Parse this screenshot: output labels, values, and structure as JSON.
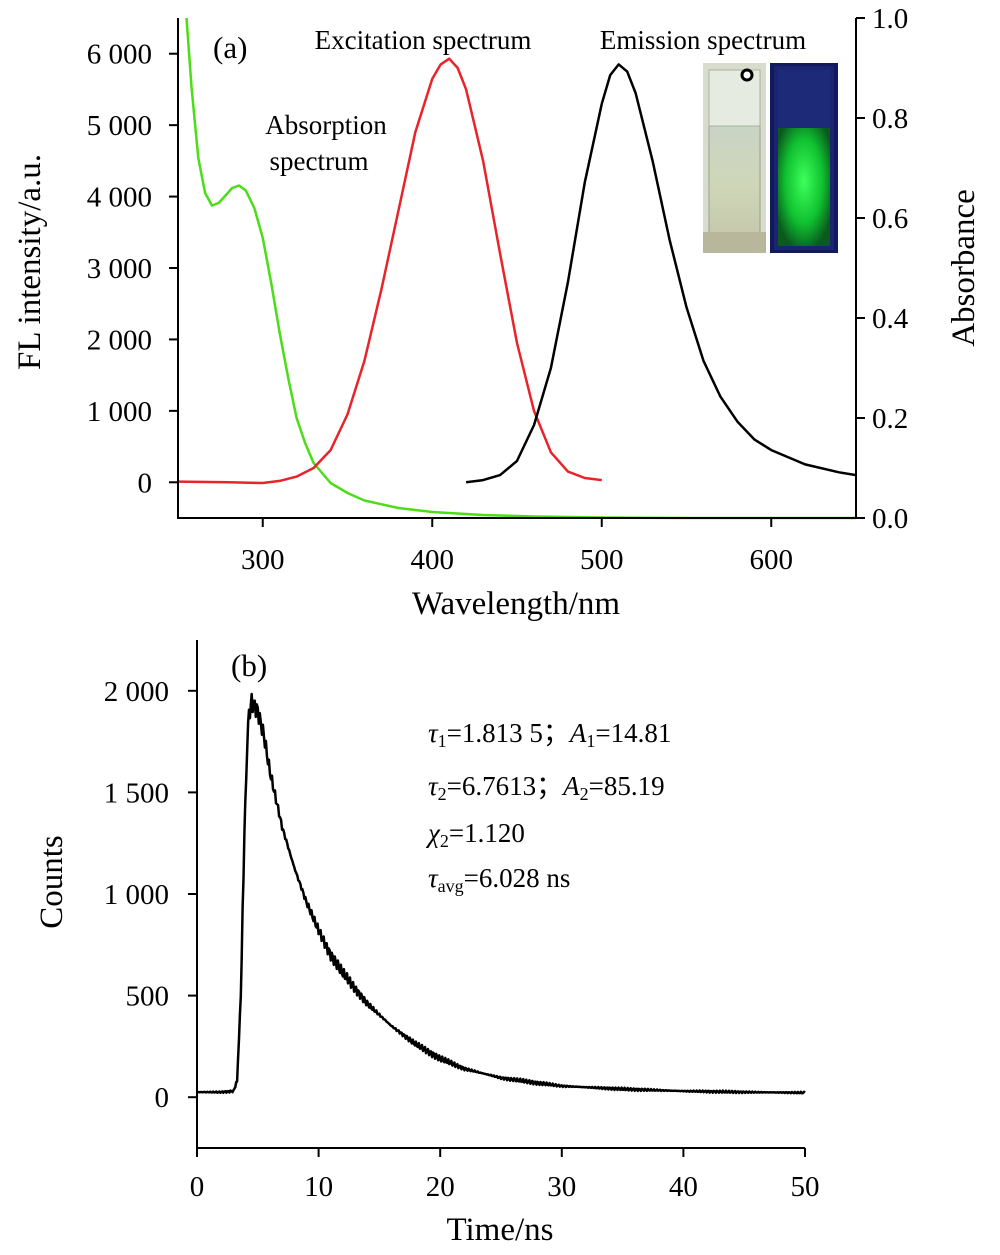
{
  "chart_data": [
    {
      "type": "line",
      "panel_label": "(a)",
      "xlabel": "Wavelength/nm",
      "ylabel": "FL intensity/a.u.",
      "y2label": "Absorbance",
      "xlim": [
        250,
        650
      ],
      "ylim": [
        -500,
        6500
      ],
      "y2lim": [
        0.0,
        1.0
      ],
      "xticks": [
        300,
        400,
        500,
        600
      ],
      "yticks": [
        0,
        1000,
        2000,
        3000,
        4000,
        5000,
        6000
      ],
      "ytick_labels": [
        "0",
        "1 000",
        "2 000",
        "3 000",
        "4 000",
        "5 000",
        "6 000"
      ],
      "y2ticks": [
        0.0,
        0.2,
        0.4,
        0.6,
        0.8,
        1.0
      ],
      "y2tick_labels": [
        "0.0",
        "0.2",
        "0.4",
        "0.6",
        "0.8",
        "1.0"
      ],
      "annotations": [
        "Excitation spectrum",
        "Emission spectrum",
        "Absorption",
        "spectrum"
      ],
      "series": [
        {
          "label": "Absorption spectrum",
          "axis": "right",
          "color": "#4cdd18",
          "x": [
            255,
            258,
            262,
            266,
            270,
            274,
            278,
            282,
            286,
            290,
            295,
            300,
            305,
            310,
            315,
            320,
            325,
            330,
            340,
            350,
            360,
            380,
            400,
            430,
            460,
            500,
            550,
            600,
            650
          ],
          "y": [
            1.0,
            0.86,
            0.72,
            0.65,
            0.625,
            0.63,
            0.645,
            0.66,
            0.665,
            0.655,
            0.62,
            0.56,
            0.47,
            0.37,
            0.28,
            0.2,
            0.15,
            0.11,
            0.07,
            0.05,
            0.035,
            0.02,
            0.012,
            0.006,
            0.003,
            0.001,
            0.0,
            0.0,
            0.0
          ]
        },
        {
          "label": "Excitation spectrum",
          "axis": "left",
          "color": "#e8232a",
          "x": [
            250,
            280,
            300,
            310,
            320,
            330,
            340,
            350,
            360,
            370,
            380,
            390,
            400,
            405,
            410,
            415,
            420,
            430,
            440,
            450,
            460,
            470,
            480,
            490,
            500
          ],
          "y": [
            10,
            0,
            -10,
            20,
            80,
            200,
            450,
            950,
            1700,
            2700,
            3800,
            4900,
            5650,
            5850,
            5930,
            5800,
            5500,
            4500,
            3200,
            1950,
            1000,
            420,
            150,
            60,
            30
          ]
        },
        {
          "label": "Emission spectrum",
          "axis": "left",
          "color": "#000000",
          "x": [
            420,
            430,
            440,
            450,
            460,
            470,
            480,
            490,
            500,
            505,
            510,
            515,
            520,
            530,
            540,
            550,
            560,
            570,
            580,
            590,
            600,
            620,
            640,
            650
          ],
          "y": [
            0,
            30,
            100,
            300,
            800,
            1600,
            2800,
            4200,
            5300,
            5700,
            5850,
            5750,
            5450,
            4500,
            3400,
            2450,
            1700,
            1200,
            850,
            600,
            450,
            250,
            140,
            100
          ]
        }
      ]
    },
    {
      "type": "line",
      "panel_label": "(b)",
      "xlabel": "Time/ns",
      "ylabel": "Counts",
      "xlim": [
        0,
        50
      ],
      "ylim": [
        -250,
        2250
      ],
      "xticks": [
        0,
        10,
        20,
        30,
        40,
        50
      ],
      "yticks": [
        0,
        500,
        1000,
        1500,
        2000
      ],
      "ytick_labels": [
        "0",
        "500",
        "1 000",
        "1 500",
        "2 000"
      ],
      "fit_results": {
        "tau1_sym": "τ",
        "tau1_sub": "1",
        "tau1_val": "=1.813 5；",
        "a1_sym": "A",
        "a1_sub": "1",
        "a1_val": "=14.81",
        "tau2_sym": "τ",
        "tau2_sub": "2",
        "tau2_val": "=6.7613；",
        "a2_sym": "A",
        "a2_sub": "2",
        "a2_val": "=85.19",
        "chi_sym": "χ",
        "chi_sub": "2",
        "chi_val": "=1.120",
        "tavg_sym": "τ",
        "tavg_sub": "avg",
        "tavg_val": "=6.028 ns"
      },
      "series": [
        {
          "label": "decay",
          "color": "#000000",
          "x": [
            0,
            2,
            3,
            3.3,
            3.6,
            3.9,
            4.2,
            4.5,
            5,
            5.5,
            6,
            7,
            8,
            9,
            10,
            11,
            12,
            14,
            16,
            18,
            20,
            22,
            25,
            28,
            30,
            35,
            40,
            45,
            50
          ],
          "y": [
            25,
            25,
            30,
            80,
            500,
            1300,
            1850,
            1950,
            1900,
            1780,
            1600,
            1330,
            1130,
            960,
            820,
            700,
            610,
            460,
            350,
            260,
            190,
            140,
            95,
            70,
            55,
            40,
            30,
            25,
            22
          ]
        }
      ]
    }
  ]
}
